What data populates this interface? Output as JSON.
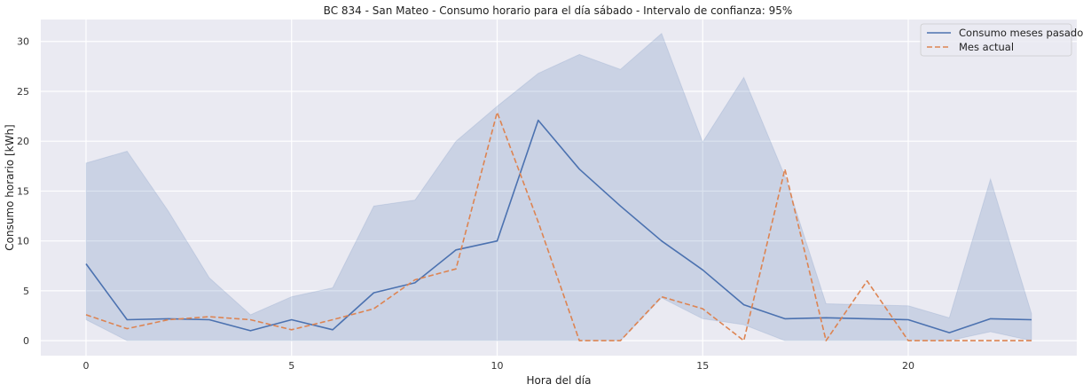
{
  "chart_data": {
    "type": "line",
    "title": "BC 834 - San Mateo - Consumo horario para el día sábado - Intervalo de confianza: 95%",
    "xlabel": "Hora del día",
    "ylabel": "Consumo horario [kWh]",
    "xlim": [
      -1.1,
      24.1
    ],
    "ylim": [
      -1.5,
      32.2
    ],
    "xticks": [
      0,
      5,
      10,
      15,
      20
    ],
    "yticks": [
      0,
      5,
      10,
      15,
      20,
      25,
      30
    ],
    "grid": true,
    "legend_position": "top-right",
    "x": [
      0,
      1,
      2,
      3,
      4,
      5,
      6,
      7,
      8,
      9,
      10,
      11,
      12,
      13,
      14,
      15,
      16,
      17,
      18,
      19,
      20,
      21,
      22,
      23
    ],
    "series": [
      {
        "name": "Consumo meses pasados",
        "style": "solid",
        "color": "#4c72b0",
        "values": [
          7.7,
          2.1,
          2.2,
          2.1,
          1.0,
          2.1,
          1.1,
          4.8,
          5.8,
          9.1,
          10.0,
          22.1,
          17.2,
          13.5,
          10.0,
          7.1,
          3.6,
          2.2,
          2.3,
          2.2,
          2.1,
          0.8,
          2.2,
          2.1
        ]
      },
      {
        "name": "Mes actual",
        "style": "dashed",
        "color": "#dd8452",
        "values": [
          2.6,
          1.2,
          2.1,
          2.4,
          2.1,
          1.1,
          2.1,
          3.2,
          6.1,
          7.2,
          22.9,
          11.9,
          0.0,
          0.0,
          4.4,
          3.2,
          0.0,
          17.2,
          0.0,
          6.0,
          0.0,
          0.0,
          0.0,
          0.0
        ]
      }
    ],
    "confidence_band": {
      "series": "Consumo meses pasados",
      "color": "#4c72b0",
      "upper": [
        17.8,
        19.0,
        13.0,
        6.3,
        2.6,
        4.4,
        5.3,
        13.5,
        14.1,
        20.0,
        23.5,
        26.8,
        28.7,
        27.2,
        30.8,
        19.9,
        26.4,
        16.5,
        3.7,
        3.6,
        3.5,
        2.3,
        16.2,
        2.7
      ],
      "lower": [
        2.1,
        0.0,
        0.0,
        0.0,
        0.0,
        0.0,
        0.0,
        0.0,
        0.0,
        0.0,
        0.0,
        0.0,
        0.0,
        0.0,
        4.3,
        2.2,
        1.6,
        0.0,
        0.0,
        0.0,
        0.0,
        0.0,
        0.9,
        0.0
      ]
    }
  }
}
